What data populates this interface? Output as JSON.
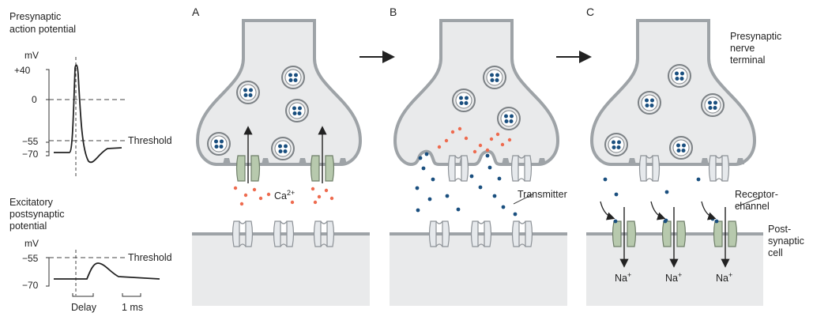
{
  "left": {
    "ap_title": [
      "Presynaptic",
      "action potential"
    ],
    "ap_unit": "mV",
    "ap_ticks": [
      "+40",
      "0",
      "−55",
      "−70"
    ],
    "ap_threshold": "Threshold",
    "epsp_title": [
      "Excitatory",
      "postsynaptic",
      "potential"
    ],
    "epsp_unit": "mV",
    "epsp_ticks": [
      "−55",
      "−70"
    ],
    "epsp_threshold": "Threshold",
    "delay": "Delay",
    "scale": "1 ms"
  },
  "panels": {
    "a": "A",
    "b": "B",
    "c": "C"
  },
  "labels": {
    "ca_base": "Ca",
    "ca_sup": "2+",
    "transmitter": "Transmitter",
    "presynaptic": [
      "Presynaptic",
      "nerve",
      "terminal"
    ],
    "receptor": [
      "Receptor-",
      "channel"
    ],
    "postsynaptic": [
      "Post-",
      "synaptic",
      "cell"
    ],
    "na_base": "Na",
    "na_sup": "+"
  },
  "colors": {
    "cell_fill": "#e9eaeb",
    "membrane": "#9ea3a7",
    "transmitter_dot": "#1a4f7f",
    "calcium_dot": "#ee6b4f",
    "open_channel": "#b7c9ad",
    "closed_channel": "#e6e9ec"
  }
}
